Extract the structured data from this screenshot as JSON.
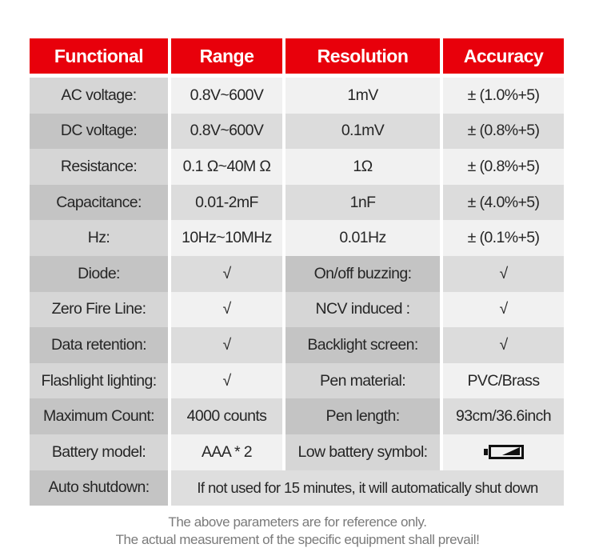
{
  "headers": [
    "Functional",
    "Range",
    "Resolution",
    "Accuracy"
  ],
  "rows": [
    {
      "cells": [
        "AC voltage:",
        "0.8V~600V",
        "1mV",
        "± (1.0%+5)"
      ],
      "labels": [
        0
      ]
    },
    {
      "cells": [
        "DC voltage:",
        "0.8V~600V",
        "0.1mV",
        "± (0.8%+5)"
      ],
      "labels": [
        0
      ]
    },
    {
      "cells": [
        "Resistance:",
        "0.1 Ω~40M Ω",
        "1Ω",
        "± (0.8%+5)"
      ],
      "labels": [
        0
      ]
    },
    {
      "cells": [
        "Capacitance:",
        "0.01-2mF",
        "1nF",
        "± (4.0%+5)"
      ],
      "labels": [
        0
      ]
    },
    {
      "cells": [
        "Hz:",
        "10Hz~10MHz",
        "0.01Hz",
        "± (0.1%+5)"
      ],
      "labels": [
        0
      ]
    },
    {
      "cells": [
        "Diode:",
        "√",
        "On/off buzzing:",
        "√"
      ],
      "labels": [
        0,
        2
      ]
    },
    {
      "cells": [
        "Zero Fire Line:",
        "√",
        "NCV induced :",
        "√"
      ],
      "labels": [
        0,
        2
      ]
    },
    {
      "cells": [
        "Data retention:",
        "√",
        "Backlight screen:",
        "√"
      ],
      "labels": [
        0,
        2
      ]
    },
    {
      "cells": [
        "Flashlight lighting:",
        "√",
        "Pen material:",
        "PVC/Brass"
      ],
      "labels": [
        0,
        2
      ]
    },
    {
      "cells": [
        "Maximum Count:",
        "4000 counts",
        "Pen length:",
        "93cm/36.6inch"
      ],
      "labels": [
        0,
        2
      ]
    },
    {
      "cells": [
        "Battery model:",
        "AAA * 2",
        "Low battery symbol:",
        ""
      ],
      "labels": [
        0,
        2
      ],
      "icon": "low-battery-icon"
    }
  ],
  "last_row": {
    "label": "Auto shutdown:",
    "value": "If not used for 15 minutes, it will automatically shut down"
  },
  "footer": [
    "The above parameters are for reference only.",
    "The actual measurement of the specific equipment shall prevail!"
  ],
  "colors": {
    "header": "#e8000b"
  }
}
